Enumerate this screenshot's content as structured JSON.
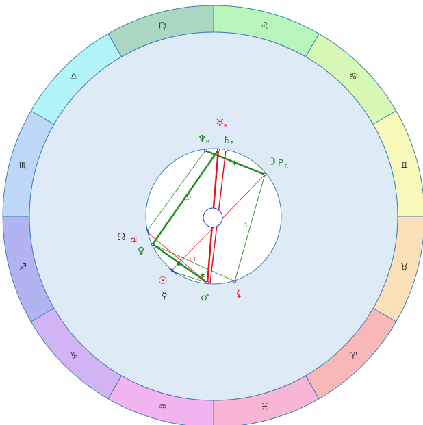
{
  "colors": {
    "background": "#ffffff",
    "wheel_fill": "#deeaf6",
    "ring_stroke": "#3d7fb0",
    "inner_fill": "#ffffff",
    "red": "#e8131f",
    "green": "#1e8a1e",
    "blue": "#2233cc",
    "black": "#333333"
  },
  "zodiac": [
    {
      "name": "capricorn",
      "glyph": "♑",
      "color": "#d2b4f5"
    },
    {
      "name": "sagittarius",
      "glyph": "♐",
      "color": "#b2b4f2"
    },
    {
      "name": "scorpio",
      "glyph": "♏",
      "color": "#bcd8f6"
    },
    {
      "name": "libra",
      "glyph": "♎",
      "color": "#b2f4fa"
    },
    {
      "name": "virgo",
      "glyph": "♍",
      "color": "#a9d7c2"
    },
    {
      "name": "leo",
      "glyph": "♌",
      "color": "#b7f5ba"
    },
    {
      "name": "cancer",
      "glyph": "♋",
      "color": "#d8f8b5"
    },
    {
      "name": "gemini",
      "glyph": "♊",
      "color": "#f8f8b8"
    },
    {
      "name": "taurus",
      "glyph": "♉",
      "color": "#fadfb7"
    },
    {
      "name": "aries",
      "glyph": "♈",
      "color": "#f9b8b8"
    },
    {
      "name": "pisces",
      "glyph": "♓",
      "color": "#f8b6d4"
    },
    {
      "name": "aquarius",
      "glyph": "♒",
      "color": "#f3b2f0"
    }
  ],
  "planets": [
    {
      "name": "uranus",
      "glyph": "♅",
      "retro": "R",
      "color": "#e8131f"
    },
    {
      "name": "neptune",
      "glyph": "♆",
      "retro": "R",
      "color": "#1e8a1e"
    },
    {
      "name": "saturn",
      "glyph": "♄",
      "retro": "R",
      "color": "#1e8a1e"
    },
    {
      "name": "moon",
      "glyph": "☽",
      "retro": "",
      "color": "#1e8a1e"
    },
    {
      "name": "pluto",
      "glyph": "♇",
      "retro": "R",
      "color": "#1e8a1e"
    },
    {
      "name": "north-node",
      "glyph": "☊",
      "retro": "",
      "color": "#333333"
    },
    {
      "name": "jupiter",
      "glyph": "♃",
      "retro": "",
      "color": "#e8131f"
    },
    {
      "name": "venus",
      "glyph": "♀",
      "retro": "",
      "color": "#1e8a1e"
    },
    {
      "name": "sun",
      "glyph": "☉",
      "retro": "",
      "color": "#e8131f"
    },
    {
      "name": "mercury",
      "glyph": "☿",
      "retro": "",
      "color": "#333333"
    },
    {
      "name": "mars",
      "glyph": "♂",
      "retro": "",
      "color": "#1e8a1e"
    },
    {
      "name": "lilith",
      "glyph": "⚸",
      "retro": "",
      "color": "#e8131f"
    }
  ]
}
